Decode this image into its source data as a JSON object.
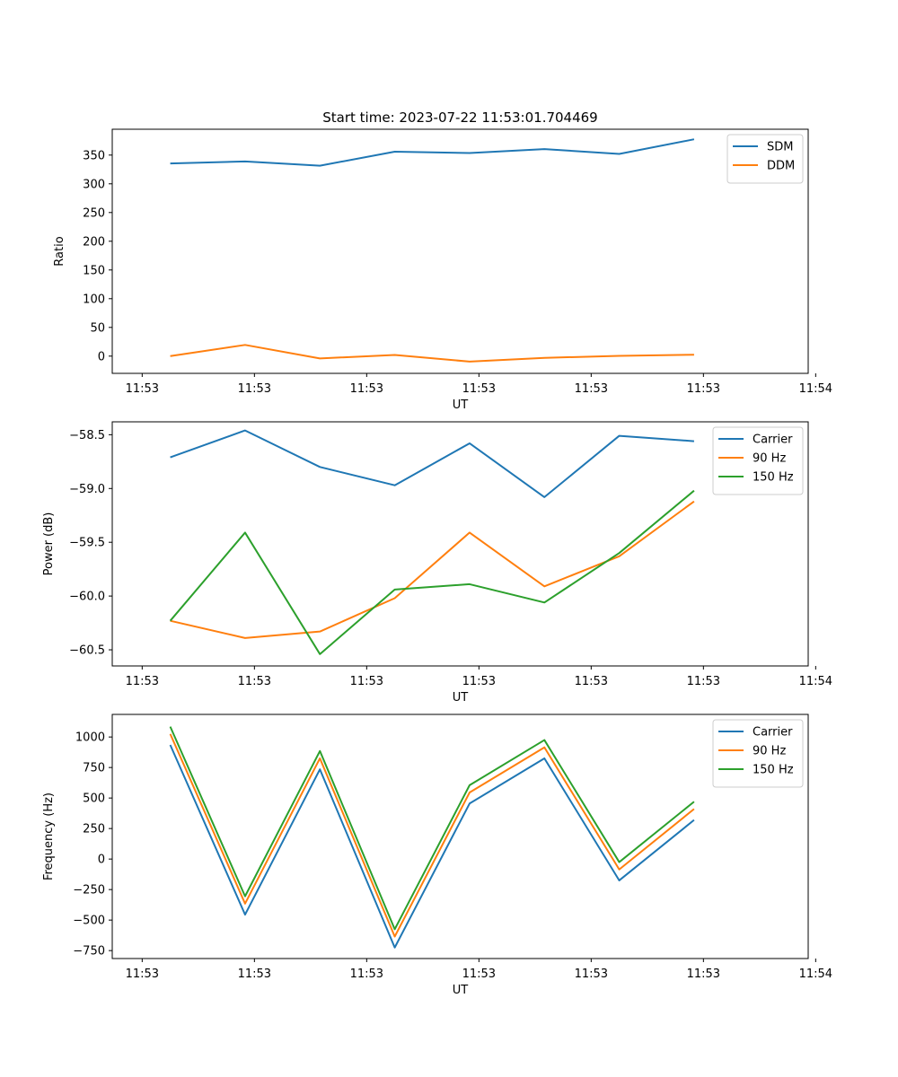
{
  "chart_data": [
    {
      "type": "line",
      "title": "Start time: 2023-07-22 11:53:01.704469",
      "xlabel": "UT",
      "ylabel": "Ratio",
      "xlim": [
        -0.4,
        8.9
      ],
      "ylim": [
        -30,
        395
      ],
      "x": [
        0.375,
        1.375,
        2.375,
        3.375,
        4.375,
        5.375,
        6.375,
        7.375
      ],
      "x_ticks": [
        0,
        1.5,
        3,
        4.5,
        6,
        7.5,
        9
      ],
      "x_tick_labels": [
        "11:53",
        "11:53",
        "11:53",
        "11:53",
        "11:53",
        "11:53",
        "11:54"
      ],
      "y_ticks": [
        0,
        50,
        100,
        150,
        200,
        250,
        300,
        350
      ],
      "legend_position": "upper right",
      "series": [
        {
          "name": "SDM",
          "color": "#1f77b4",
          "values": [
            335.5,
            339,
            331.5,
            356,
            353.5,
            360.5,
            352,
            377.5
          ]
        },
        {
          "name": "DDM",
          "color": "#ff7f0e",
          "values": [
            0,
            19.5,
            -4,
            2,
            -9.5,
            -3,
            0.5,
            2.5
          ]
        }
      ]
    },
    {
      "type": "line",
      "title": "",
      "xlabel": "UT",
      "ylabel": "Power (dB)",
      "xlim": [
        -0.4,
        8.9
      ],
      "ylim": [
        -60.65,
        -58.38
      ],
      "x": [
        0.375,
        1.375,
        2.375,
        3.375,
        4.375,
        5.375,
        6.375,
        7.375
      ],
      "x_ticks": [
        0,
        1.5,
        3,
        4.5,
        6,
        7.5,
        9
      ],
      "x_tick_labels": [
        "11:53",
        "11:53",
        "11:53",
        "11:53",
        "11:53",
        "11:53",
        "11:54"
      ],
      "y_ticks": [
        -60.5,
        -60.0,
        -59.5,
        -59.0,
        -58.5
      ],
      "y_tick_labels": [
        "−60.5",
        "−60.0",
        "−59.5",
        "−59.0",
        "−58.5"
      ],
      "legend_position": "upper right",
      "series": [
        {
          "name": "Carrier",
          "color": "#1f77b4",
          "values": [
            -58.71,
            -58.46,
            -58.8,
            -58.97,
            -58.58,
            -59.08,
            -58.51,
            -58.56
          ]
        },
        {
          "name": "90 Hz",
          "color": "#ff7f0e",
          "values": [
            -60.23,
            -60.39,
            -60.33,
            -60.02,
            -59.41,
            -59.91,
            -59.63,
            -59.12
          ]
        },
        {
          "name": "150 Hz",
          "color": "#2ca02c",
          "values": [
            -60.23,
            -59.41,
            -60.54,
            -59.94,
            -59.89,
            -60.06,
            -59.6,
            -59.02
          ]
        }
      ]
    },
    {
      "type": "line",
      "title": "",
      "xlabel": "UT",
      "ylabel": "Frequency (Hz)",
      "xlim": [
        -0.4,
        8.9
      ],
      "ylim": [
        -815,
        1185
      ],
      "x": [
        0.375,
        1.375,
        2.375,
        3.375,
        4.375,
        5.375,
        6.375,
        7.375
      ],
      "x_ticks": [
        0,
        1.5,
        3,
        4.5,
        6,
        7.5,
        9
      ],
      "x_tick_labels": [
        "11:53",
        "11:53",
        "11:53",
        "11:53",
        "11:53",
        "11:53",
        "11:54"
      ],
      "y_ticks": [
        -750,
        -500,
        -250,
        0,
        250,
        500,
        750,
        1000
      ],
      "y_tick_labels": [
        "−750",
        "−500",
        "−250",
        "0",
        "250",
        "500",
        "750",
        "1000"
      ],
      "legend_position": "upper right",
      "series": [
        {
          "name": "Carrier",
          "color": "#1f77b4",
          "values": [
            935,
            -455,
            735,
            -725,
            455,
            825,
            -175,
            320
          ]
        },
        {
          "name": "90 Hz",
          "color": "#ff7f0e",
          "values": [
            1025,
            -365,
            825,
            -635,
            545,
            915,
            -85,
            410
          ]
        },
        {
          "name": "150 Hz",
          "color": "#2ca02c",
          "values": [
            1085,
            -305,
            885,
            -575,
            605,
            975,
            -25,
            470
          ]
        }
      ]
    }
  ]
}
